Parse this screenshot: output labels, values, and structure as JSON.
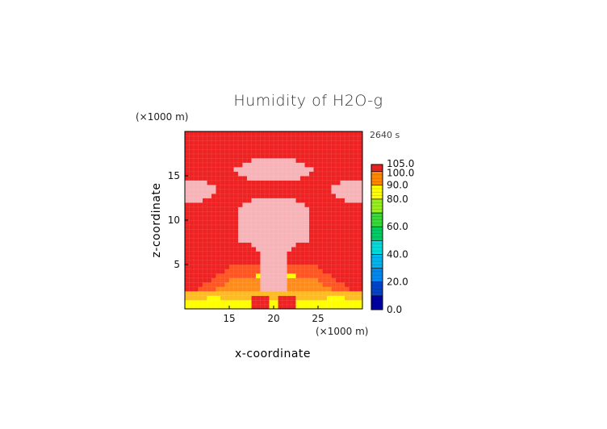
{
  "chart_data": {
    "type": "heatmap",
    "title": "Humidity of H2O-g",
    "time_label": "2640 s",
    "xlabel": "x-coordinate",
    "ylabel": "z-coordinate",
    "x_unit": "(×1000 m)",
    "y_unit": "(×1000 m)",
    "xlim": [
      10,
      30
    ],
    "ylim": [
      0,
      20
    ],
    "x_ticks": [
      15,
      20,
      25
    ],
    "y_ticks": [
      5,
      10,
      15
    ],
    "colorbar": {
      "levels": [
        0,
        10,
        20,
        30,
        40,
        50,
        60,
        70,
        80,
        90,
        100,
        105
      ],
      "tick_labels": [
        "0.0",
        "20.0",
        "40.0",
        "60.0",
        "80.0",
        "90.0",
        "100.0",
        "105.0"
      ],
      "colors": [
        "#0000a0",
        "#0044cc",
        "#0088ee",
        "#00b4f0",
        "#00dddd",
        "#00cc66",
        "#33dd33",
        "#99ee22",
        "#ffff00",
        "#ff8800",
        "#ff2020",
        "#ffffff"
      ]
    },
    "field_description_levels": {
      "background": 95,
      "plume_core": 102,
      "near_surface_band": 80
    }
  }
}
